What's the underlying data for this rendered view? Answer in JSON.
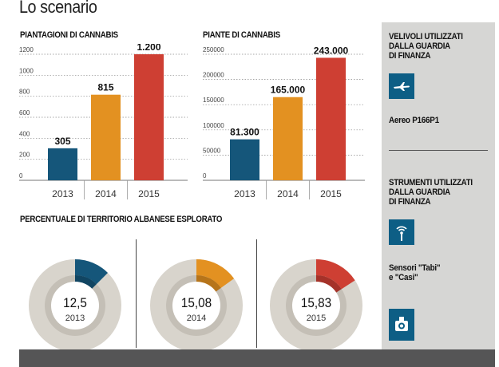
{
  "page_title": "Lo scenario",
  "colors": {
    "blue": "#15567a",
    "orange": "#e39121",
    "red": "#ce3f33",
    "donut_bg": "#d8d4cc",
    "donut_inner": "#c4bfb6"
  },
  "chart_data": [
    {
      "type": "bar",
      "title": "PIANTAGIONI DI CANNABIS",
      "categories": [
        "2013",
        "2014",
        "2015"
      ],
      "values": [
        305,
        815,
        1200
      ],
      "value_labels": [
        "305",
        "815",
        "1.200"
      ],
      "yticks": [
        0,
        200,
        400,
        600,
        800,
        1000,
        1200
      ],
      "ytick_labels": [
        "0",
        "200",
        "400",
        "600",
        "800",
        "1000",
        "1200"
      ],
      "ylim": [
        0,
        1200
      ],
      "xlabel": "",
      "ylabel": ""
    },
    {
      "type": "bar",
      "title": "PIANTE DI CANNABIS",
      "categories": [
        "2013",
        "2014",
        "2015"
      ],
      "values": [
        81300,
        165000,
        243000
      ],
      "value_labels": [
        "81.300",
        "165.000",
        "243.000"
      ],
      "yticks": [
        0,
        50000,
        100000,
        150000,
        200000,
        250000
      ],
      "ytick_labels": [
        "0",
        "50000",
        "100000",
        "150000",
        "200000",
        "250000"
      ],
      "ylim": [
        0,
        250000
      ],
      "xlabel": "",
      "ylabel": ""
    },
    {
      "type": "pie",
      "title": "PERCENTUALE DI TERRITORIO ALBANESE ESPLORATO",
      "items": [
        {
          "year": "2013",
          "value": 12.5,
          "label": "12,5"
        },
        {
          "year": "2014",
          "value": 15.08,
          "label": "15,08"
        },
        {
          "year": "2015",
          "value": 15.83,
          "label": "15,83"
        }
      ]
    }
  ],
  "sidebar": {
    "section1_heading": [
      "VELIVOLI UTILIZZATI",
      "DALLA GUARDIA",
      "DI FINANZA"
    ],
    "aircraft_label": "Aereo P166P1",
    "section2_heading": [
      "STRUMENTI UTILIZZATI",
      "DALLA GUARDIA",
      "DI FINANZA"
    ],
    "sensor_label": [
      "Sensori \"Tabi\"",
      "e \"Casi\""
    ],
    "icons": [
      "airplane-icon",
      "antenna-icon",
      "camera-icon"
    ]
  }
}
